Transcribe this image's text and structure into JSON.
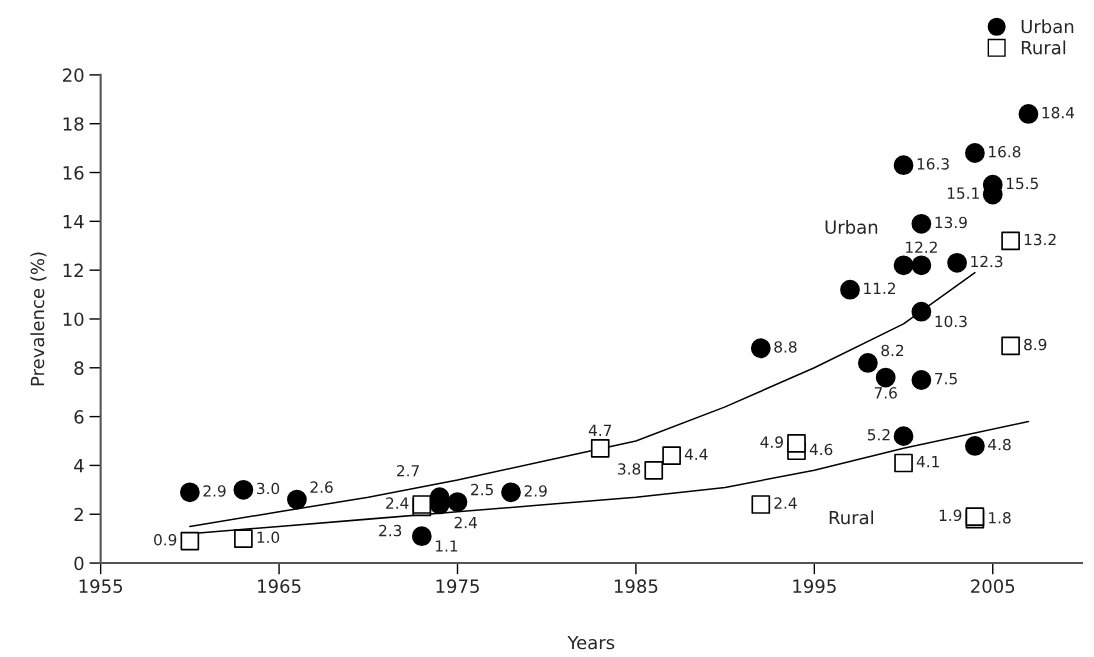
{
  "chart_data": {
    "type": "scatter",
    "xlabel": "Years",
    "ylabel": "Prevalence (%)",
    "xlim": [
      1955,
      2010
    ],
    "xticks": [
      1955,
      1965,
      1975,
      1985,
      1995,
      2005
    ],
    "ylim": [
      0,
      20
    ],
    "yticks": [
      0,
      2,
      4,
      6,
      8,
      10,
      12,
      14,
      16,
      18,
      20
    ],
    "grid": false,
    "legend": "top right",
    "series": [
      {
        "name": "Urban",
        "marker": "circle",
        "color": "#000000",
        "x": [
          1960,
          1963,
          1966,
          1973,
          1974,
          1974,
          1975,
          1978,
          1992,
          1997,
          1998,
          1999,
          2000,
          2000,
          2000,
          2001,
          2001,
          2001,
          2001,
          2003,
          2004,
          2004,
          2005,
          2005,
          2007
        ],
        "values": [
          2.9,
          3.0,
          2.6,
          1.1,
          2.4,
          2.7,
          2.5,
          2.9,
          8.8,
          11.2,
          8.2,
          7.6,
          5.2,
          12.2,
          16.3,
          7.5,
          10.3,
          12.2,
          13.9,
          12.3,
          4.8,
          16.8,
          15.1,
          15.5,
          18.4
        ],
        "value_labels": [
          "2.9",
          "3.0",
          "2.6",
          "1.1",
          "2.4",
          "2.7",
          "2.5",
          "2.9",
          "8.8",
          "11.2",
          "8.2",
          "7.6",
          "5.2",
          null,
          "16.3",
          "7.5",
          "10.3",
          "12.2",
          "13.9",
          "12.3",
          "4.8",
          "16.8",
          "15.1",
          "15.5",
          "18.4"
        ]
      },
      {
        "name": "Rural",
        "marker": "square",
        "color": "#ffffff",
        "x": [
          1960,
          1963,
          1973,
          1973,
          1983,
          1986,
          1987,
          1992,
          1994,
          1994,
          2000,
          2004,
          2004,
          2006,
          2006
        ],
        "values": [
          0.9,
          1.0,
          2.3,
          2.4,
          4.7,
          3.8,
          4.4,
          2.4,
          4.6,
          4.9,
          4.1,
          1.8,
          1.9,
          8.9,
          13.2
        ],
        "value_labels": [
          "0.9",
          "1.0",
          "2.3",
          "2.4",
          "4.7",
          "3.8",
          "4.4",
          "2.4",
          "4.6",
          "4.9",
          "4.1",
          "1.8",
          "1.9",
          "8.9",
          "13.2"
        ]
      },
      {
        "type": "line",
        "color": "#000000",
        "line_style": "solid",
        "x": [
          1960,
          1965,
          1970,
          1975,
          1980,
          1985,
          1990,
          1995,
          2000,
          2004
        ],
        "values": [
          1.5,
          2.1,
          2.7,
          3.4,
          4.2,
          5.0,
          6.4,
          8.0,
          9.8,
          11.9
        ]
      },
      {
        "type": "line",
        "color": "#000000",
        "line_style": "solid",
        "x": [
          1960,
          1965,
          1970,
          1975,
          1980,
          1985,
          1990,
          1995,
          2000,
          2007
        ],
        "values": [
          1.2,
          1.5,
          1.8,
          2.1,
          2.4,
          2.7,
          3.1,
          3.8,
          4.7,
          5.8
        ]
      }
    ],
    "annotations": [
      "Urban",
      "Rural"
    ]
  }
}
